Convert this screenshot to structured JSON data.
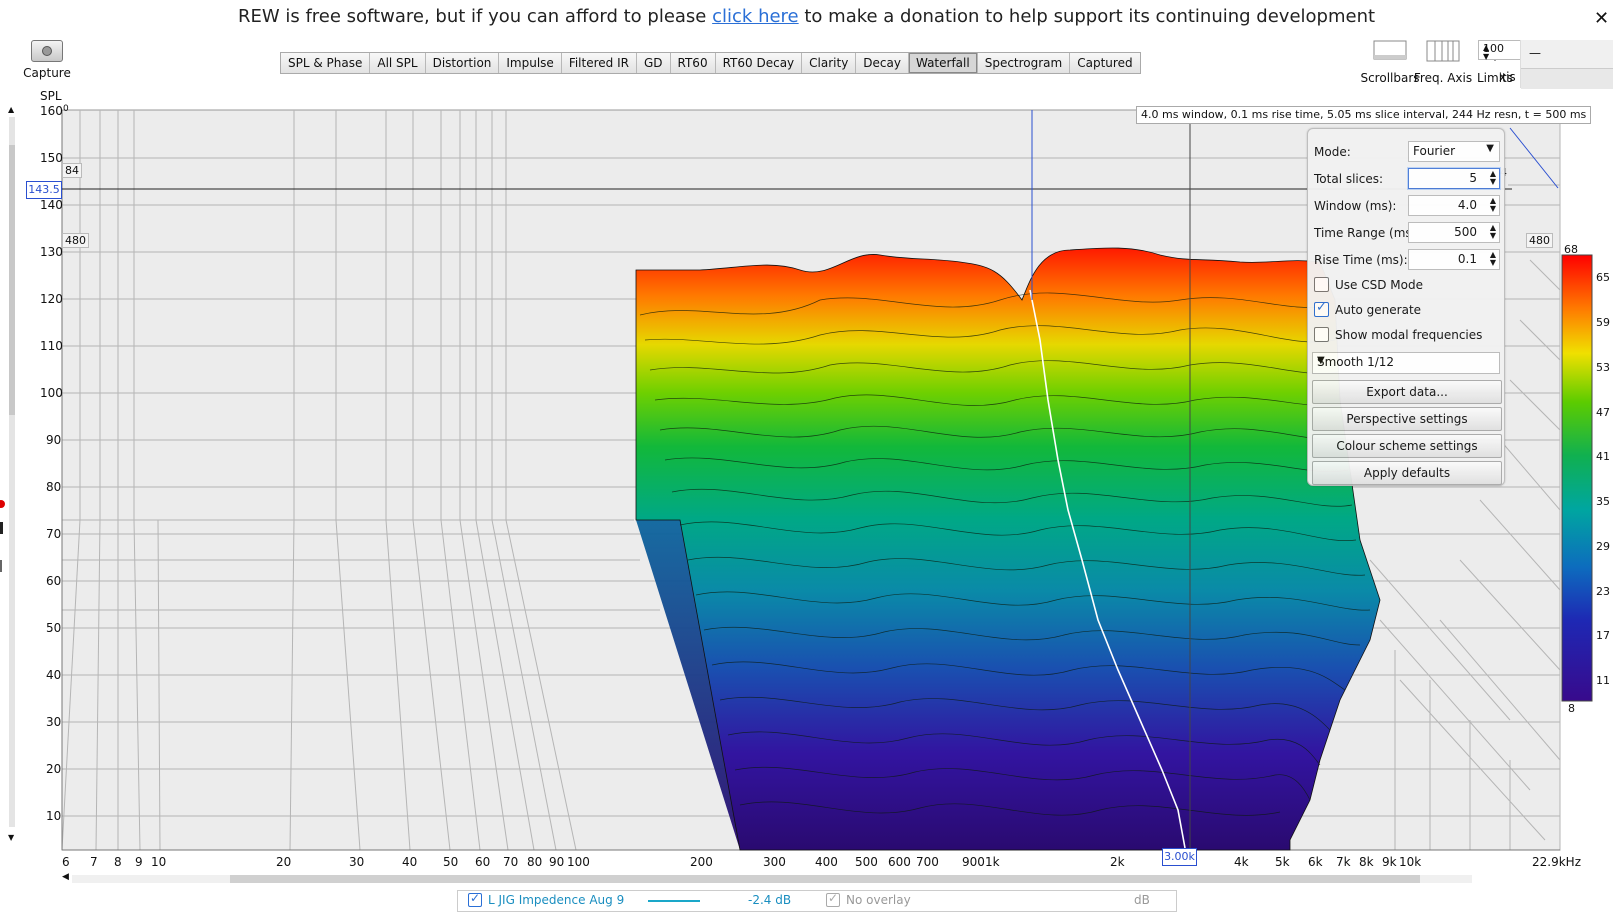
{
  "banner": {
    "prefix": "REW is free software, but if you can afford to please",
    "link": "click here",
    "suffix": "to make a donation to help support its continuing development"
  },
  "capture": {
    "label": "Capture",
    "icon": "camera-icon"
  },
  "tabs": [
    "SPL & Phase",
    "All SPL",
    "Distortion",
    "Impulse",
    "Filtered IR",
    "GD",
    "RT60",
    "RT60 Decay",
    "Clarity",
    "Decay",
    "Waterfall",
    "Spectrogram",
    "Captured"
  ],
  "active_tab": "Waterfall",
  "toolbar": {
    "scrollbars": "Scrollbars",
    "freq_axis": "Freq. Axis",
    "limits": "Limits",
    "axis_cut": "xis",
    "limits_value": "100",
    "minimize": "—",
    "close": "✕"
  },
  "plot": {
    "y_axis_label": "SPL",
    "y_ticks": [
      "160",
      "150",
      "140",
      "130",
      "120",
      "110",
      "100",
      "90",
      "80",
      "70",
      "60",
      "50",
      "40",
      "30",
      "20",
      "10"
    ],
    "x_ticks": [
      "6",
      "7",
      "8",
      "9",
      "10",
      "20",
      "30",
      "40",
      "50",
      "60",
      "70",
      "80",
      "90",
      "100",
      "200",
      "300",
      "400",
      "500",
      "600",
      "700",
      "900",
      "1k",
      "2k",
      "4k",
      "5k",
      "6k",
      "7k",
      "8k",
      "9k",
      "10k",
      "22.9kHz"
    ],
    "cursor_y": "143.5",
    "cursor_x": "3.00k",
    "info": "4.0 ms window, 0.1 ms rise time, 5.05 ms slice interval, 244 Hz resn, t = 500 ms",
    "label_84": "84",
    "label_480_left": "480",
    "label_480_right": "480",
    "label_4": "4",
    "y_zero_mark": "0"
  },
  "colorbar": {
    "max": "68",
    "min": "8",
    "ticks": [
      "65",
      "59",
      "53",
      "47",
      "41",
      "35",
      "29",
      "23",
      "17",
      "11"
    ]
  },
  "panel": {
    "mode_label": "Mode:",
    "mode_value": "Fourier",
    "slices_label": "Total slices:",
    "slices_value": "5",
    "window_label": "Window (ms):",
    "window_value": "4.0",
    "range_label": "Time Range (ms):",
    "range_value": "500",
    "rise_label": "Rise Time (ms):",
    "rise_value": "0.1",
    "csd_label": "Use CSD Mode",
    "auto_label": "Auto generate",
    "modal_label": "Show modal frequencies",
    "smooth_value": "Smooth 1/12",
    "export_label": "Export data...",
    "perspective_label": "Perspective settings",
    "colour_label": "Colour scheme settings",
    "defaults_label": "Apply defaults"
  },
  "legend": {
    "measurement": "L JIG Impedence Aug 9",
    "offset": "-2.4 dB",
    "overlay": "No overlay",
    "overlay_unit": "dB",
    "line_color": "#1aa7c9"
  }
}
